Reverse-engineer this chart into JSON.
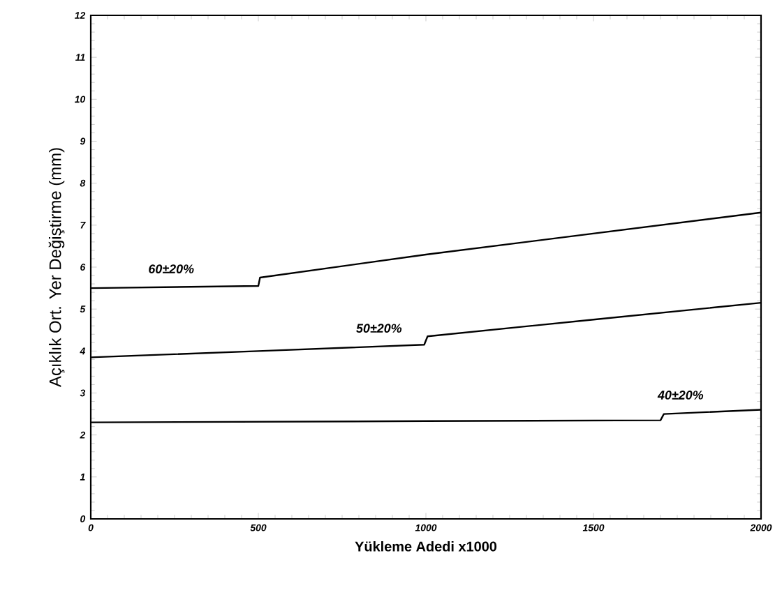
{
  "chart_data": {
    "type": "line",
    "xlabel": "Yükleme Adedi x1000",
    "ylabel": "Açıklık Ort. Yer Değiştirme (mm)",
    "xlim": [
      0,
      2000
    ],
    "ylim": [
      0,
      12
    ],
    "xticks": [
      0,
      500,
      1000,
      1500,
      2000
    ],
    "yticks": [
      0,
      1,
      2,
      3,
      4,
      5,
      6,
      7,
      8,
      9,
      10,
      11,
      12
    ],
    "grid": false,
    "marker": "none",
    "line_style": "solid",
    "series": [
      {
        "name": "60±20%",
        "color": "#000000",
        "x": [
          0,
          500,
          505,
          1000,
          1500,
          2000
        ],
        "values": [
          5.5,
          5.55,
          5.75,
          6.3,
          6.8,
          7.3
        ]
      },
      {
        "name": "50±20%",
        "color": "#000000",
        "x": [
          0,
          500,
          995,
          1005,
          1500,
          2000
        ],
        "values": [
          3.85,
          4.0,
          4.15,
          4.35,
          4.75,
          5.15
        ]
      },
      {
        "name": "40±20%",
        "color": "#000000",
        "x": [
          0,
          1000,
          1700,
          1710,
          2000
        ],
        "values": [
          2.3,
          2.33,
          2.35,
          2.5,
          2.6
        ]
      }
    ]
  }
}
